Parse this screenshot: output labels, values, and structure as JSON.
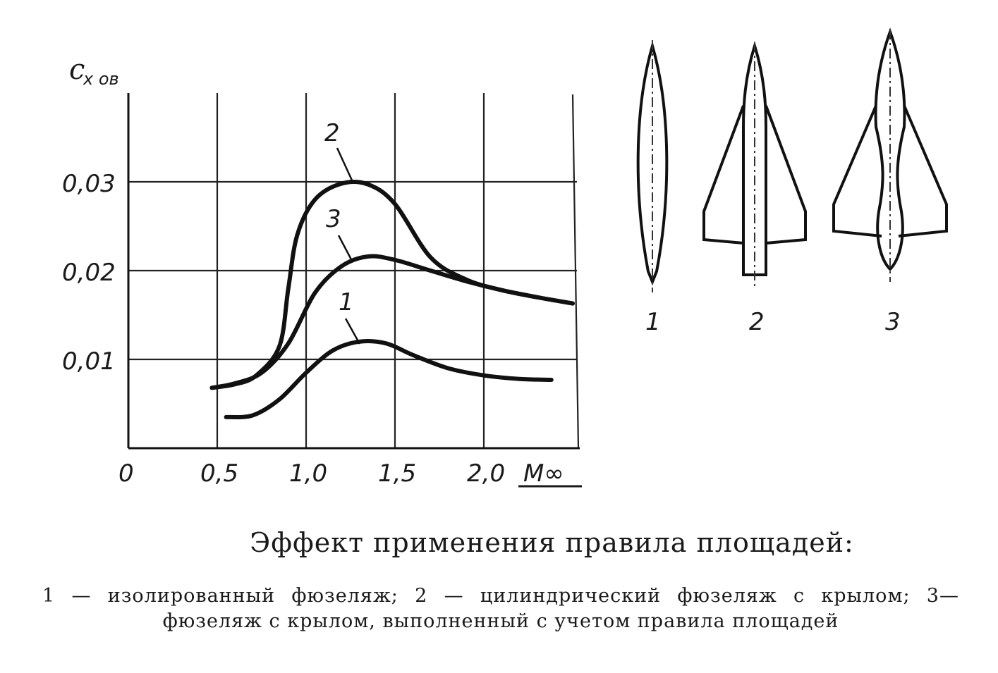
{
  "chart_data": {
    "type": "line",
    "ylabel": "c",
    "ylabel_sub": "x ов",
    "xlabel": "M∞",
    "xlim": [
      0,
      2.5
    ],
    "ylim": [
      0,
      0.04
    ],
    "grid": true,
    "x_ticks": [
      "0",
      "0,5",
      "1,0",
      "1,5",
      "2,0"
    ],
    "y_ticks": [
      "0,01",
      "0,02",
      "0,03"
    ],
    "series": [
      {
        "name": "1",
        "x": [
          0.55,
          0.7,
          0.85,
          1.0,
          1.15,
          1.3,
          1.45,
          1.6,
          1.8,
          2.0,
          2.2,
          2.38
        ],
        "y": [
          0.0035,
          0.0037,
          0.0055,
          0.0085,
          0.011,
          0.012,
          0.0118,
          0.0105,
          0.009,
          0.0082,
          0.0078,
          0.0077
        ]
      },
      {
        "name": "2",
        "x": [
          0.47,
          0.6,
          0.72,
          0.85,
          0.9,
          0.95,
          1.05,
          1.2,
          1.35,
          1.5,
          1.7,
          1.9,
          2.1,
          2.3,
          2.5
        ],
        "y": [
          0.0068,
          0.0072,
          0.0082,
          0.0115,
          0.018,
          0.024,
          0.028,
          0.0298,
          0.0297,
          0.0275,
          0.0215,
          0.019,
          0.0178,
          0.017,
          0.0163
        ]
      },
      {
        "name": "3",
        "x": [
          0.47,
          0.6,
          0.75,
          0.9,
          1.05,
          1.2,
          1.35,
          1.5,
          1.7,
          1.9,
          2.1,
          2.3,
          2.5
        ],
        "y": [
          0.0068,
          0.0073,
          0.0085,
          0.0118,
          0.0175,
          0.0205,
          0.0216,
          0.0212,
          0.02,
          0.0188,
          0.0178,
          0.017,
          0.0163
        ]
      }
    ]
  },
  "aircraft": [
    {
      "label": "1"
    },
    {
      "label": "2"
    },
    {
      "label": "3"
    }
  ],
  "caption": {
    "title": "Эффект применения правила площадей:",
    "body": "1 — изолированный фюзеляж; 2 — цилиндрический фюзеляж с крылом; 3—фюзеляж с крылом, выполненный с учетом правила площадей"
  }
}
